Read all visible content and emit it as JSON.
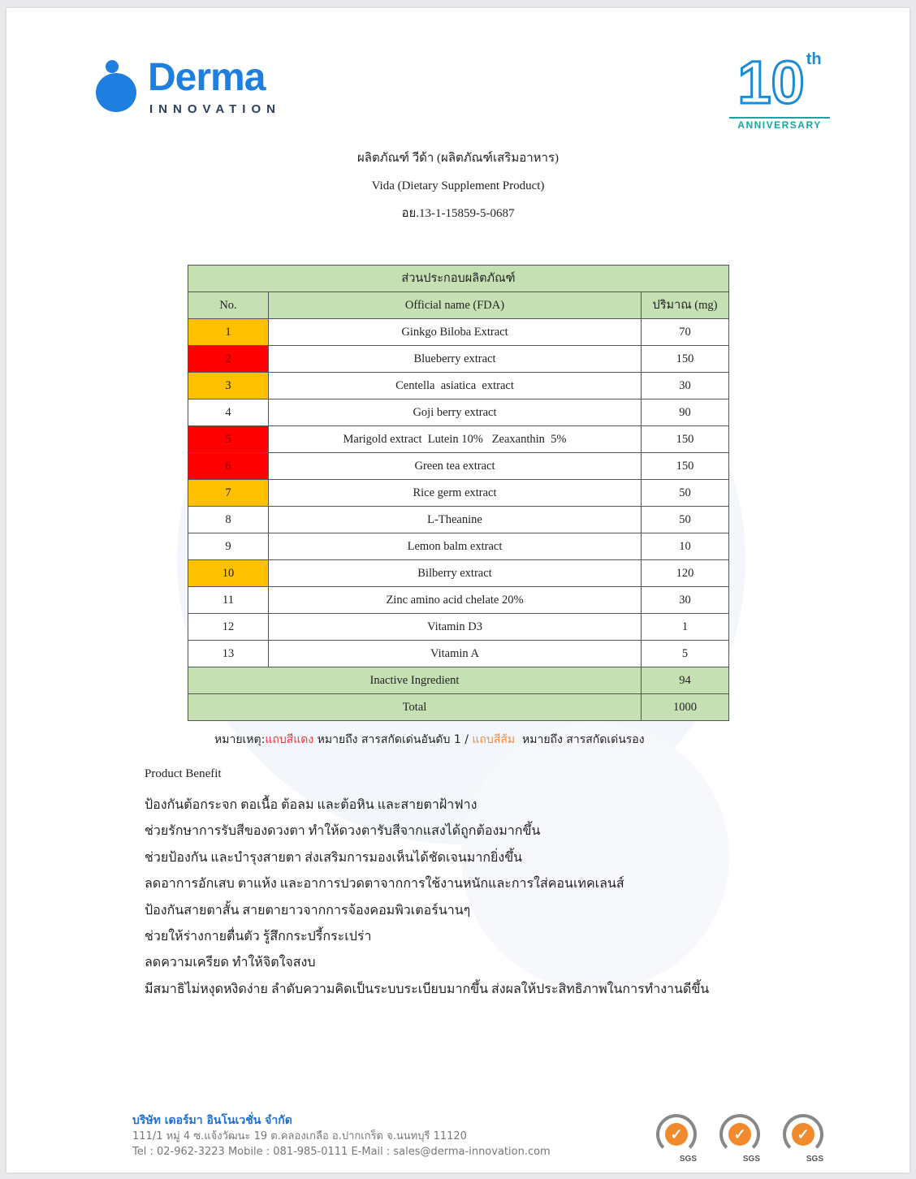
{
  "header": {
    "brand": "Derma",
    "brand_sub": "INNOVATION",
    "anniversary_number": "10",
    "anniversary_suffix": "th",
    "anniversary_label": "ANNIVERSARY",
    "title_th": "ผลิตภัณฑ์ วีด้า (ผลิตภัณฑ์เสริมอาหาร)",
    "title_en": "Vida (Dietary Supplement Product)",
    "reg_no": "อย.13-1-15859-5-0687"
  },
  "colors": {
    "highlight_primary": "#ff0000",
    "highlight_secondary": "#ffc000",
    "table_header": "#c5e0b3",
    "brand": "#1e7fe0"
  },
  "table": {
    "title": "ส่วนประกอบผลิตภัณฑ์",
    "columns": [
      "No.",
      "Official name (FDA)",
      "ปริมาณ (mg)"
    ],
    "rows": [
      {
        "no": "1",
        "name": "Ginkgo Biloba Extract",
        "mg": "70",
        "highlight": "orange"
      },
      {
        "no": "2",
        "name": "Blueberry extract",
        "mg": "150",
        "highlight": "red"
      },
      {
        "no": "3",
        "name": "Centella  asiatica  extract",
        "mg": "30",
        "highlight": "orange"
      },
      {
        "no": "4",
        "name": "Goji berry extract",
        "mg": "90",
        "highlight": ""
      },
      {
        "no": "5",
        "name": "Marigold extract  Lutein 10%   Zeaxanthin  5%",
        "mg": "150",
        "highlight": "red"
      },
      {
        "no": "6",
        "name": "Green tea extract",
        "mg": "150",
        "highlight": "red"
      },
      {
        "no": "7",
        "name": "Rice germ extract",
        "mg": "50",
        "highlight": "orange"
      },
      {
        "no": "8",
        "name": "L-Theanine",
        "mg": "50",
        "highlight": ""
      },
      {
        "no": "9",
        "name": "Lemon balm extract",
        "mg": "10",
        "highlight": ""
      },
      {
        "no": "10",
        "name": "Bilberry extract",
        "mg": "120",
        "highlight": "orange"
      },
      {
        "no": "11",
        "name": "Zinc amino acid chelate 20%",
        "mg": "30",
        "highlight": ""
      },
      {
        "no": "12",
        "name": "Vitamin D3",
        "mg": "1",
        "highlight": ""
      },
      {
        "no": "13",
        "name": "Vitamin A",
        "mg": "5",
        "highlight": ""
      }
    ],
    "inactive_label": "Inactive Ingredient",
    "inactive_mg": "94",
    "total_label": "Total",
    "total_mg": "1000"
  },
  "note": {
    "prefix": "หมายเหตุ:",
    "red_label": "แถบสีแดง",
    "red_text": " หมายถึง สารสกัดเด่นอันดับ 1 / ",
    "orange_label": "แถบสีส้ม",
    "orange_text": "  หมายถึง สารสกัดเด่นรอง"
  },
  "benefit": {
    "title": "Product Benefit",
    "items": [
      "ป้องกันต้อกระจก ตอเนื้อ ต้อลม และต้อหิน และสายตาฝ้าฟาง",
      "ช่วยรักษาการรับสีของดวงตา ทำให้ดวงตารับสีจากแสงได้ถูกต้องมากขึ้น",
      "ช่วยป้องกัน และบำรุงสายตา ส่งเสริมการมองเห็นได้ชัดเจนมากยิ่งขึ้น",
      "ลดอาการอักเสบ ตาแห้ง และอาการปวดตาจากการใช้งานหนักและการใส่คอนเทคเลนส์",
      "ป้องกันสายตาสั้น สายตายาวจากการจ้องคอมพิวเตอร์นานๆ",
      "ช่วยให้ร่างกายตื่นตัว รู้สึกกระปรี้กระเปร่า",
      "ลดความเครียด ทำให้จิตใจสงบ",
      "มีสมาธิไม่หงุดหงิดง่าย ลำดับความคิดเป็นระบบระเบียบมากขึ้น ส่งผลให้ประสิทธิภาพในการทำงานดีขึ้น"
    ]
  },
  "footer": {
    "company": "บริษัท เดอร์มา อินโนเวชั่น จำกัด",
    "address": "111/1 หมู่ 4 ซ.แจ้งวัฒนะ 19 ต.คลองเกลือ อ.ปากเกร็ด จ.นนทบุรี 11120",
    "contact": "Tel : 02-962-3223 Mobile : 081-985-0111 E-Mail : sales@derma-innovation.com",
    "badges": [
      "SGS",
      "SGS",
      "SGS"
    ]
  }
}
